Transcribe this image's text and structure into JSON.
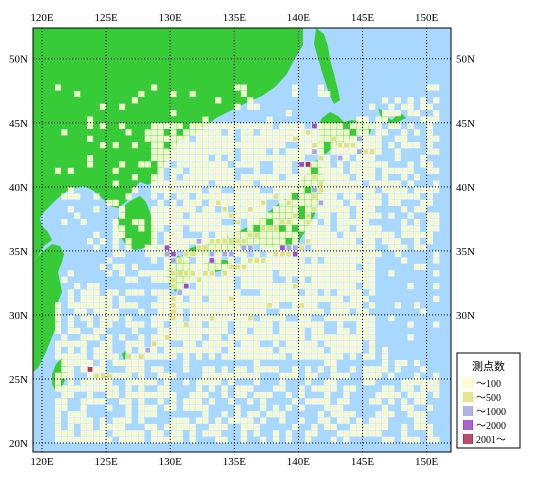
{
  "map": {
    "lon_min": 119.3,
    "lon_max": 151.9,
    "lat_min": 19.3,
    "lat_max": 52.4,
    "grid_lons": [
      120,
      125,
      130,
      135,
      140,
      145,
      150
    ],
    "grid_lats": [
      20,
      25,
      30,
      35,
      40,
      45,
      50
    ],
    "lon_labels": [
      "120E",
      "125E",
      "130E",
      "135E",
      "140E",
      "145E",
      "150E"
    ],
    "lat_labels": [
      "20N",
      "25N",
      "30N",
      "35N",
      "40N",
      "45N",
      "50N"
    ],
    "colors": {
      "ocean": "#a8d8ff",
      "land": "#37cc37",
      "grid": "#000000",
      "frame": "#000000"
    }
  },
  "legend": {
    "title": "測点数",
    "items": [
      {
        "label": "～100",
        "color": "#fbfbc4"
      },
      {
        "label": "～500",
        "color": "#e2e27a"
      },
      {
        "label": "～1000",
        "color": "#a6a6e0"
      },
      {
        "label": "～2000",
        "color": "#9b4bc6"
      },
      {
        "label": "2001～",
        "color": "#b0324f"
      }
    ]
  },
  "chart_data": {
    "type": "heatmap",
    "cell_size_deg": 0.5,
    "categories": [
      "～100",
      "～500",
      "～1000",
      "～2000",
      "2001～"
    ],
    "cells_by_category": {
      "～500": [
        [
          139.5,
          43.5
        ],
        [
          140.5,
          44.0
        ],
        [
          141.0,
          43.0
        ],
        [
          142.5,
          43.5
        ],
        [
          143.0,
          43.0
        ],
        [
          143.5,
          43.0
        ],
        [
          144.0,
          43.0
        ],
        [
          144.5,
          42.5
        ],
        [
          145.0,
          42.5
        ],
        [
          145.5,
          42.5
        ],
        [
          140.0,
          41.5
        ],
        [
          141.5,
          42.0
        ],
        [
          141.0,
          40.5
        ],
        [
          141.5,
          40.0
        ],
        [
          141.5,
          39.5
        ],
        [
          141.0,
          39.0
        ],
        [
          141.5,
          38.5
        ],
        [
          141.0,
          38.0
        ],
        [
          140.5,
          37.5
        ],
        [
          140.5,
          37.0
        ],
        [
          139.5,
          37.5
        ],
        [
          139.0,
          37.0
        ],
        [
          138.5,
          37.0
        ],
        [
          138.0,
          36.5
        ],
        [
          137.5,
          36.5
        ],
        [
          137.0,
          36.5
        ],
        [
          136.5,
          36.0
        ],
        [
          136.0,
          36.0
        ],
        [
          135.5,
          35.5
        ],
        [
          135.0,
          35.5
        ],
        [
          134.5,
          35.5
        ],
        [
          134.0,
          35.5
        ],
        [
          133.5,
          35.5
        ],
        [
          133.0,
          35.5
        ],
        [
          132.5,
          35.0
        ],
        [
          132.0,
          35.0
        ],
        [
          131.5,
          34.5
        ],
        [
          131.0,
          34.5
        ],
        [
          130.5,
          34.0
        ],
        [
          130.5,
          33.0
        ],
        [
          131.0,
          33.0
        ],
        [
          131.5,
          33.0
        ],
        [
          132.0,
          32.5
        ],
        [
          132.5,
          33.0
        ],
        [
          133.0,
          33.0
        ],
        [
          134.0,
          33.0
        ],
        [
          134.5,
          33.5
        ],
        [
          135.0,
          33.5
        ],
        [
          135.5,
          33.5
        ],
        [
          136.0,
          34.0
        ],
        [
          136.5,
          34.0
        ],
        [
          137.0,
          34.0
        ],
        [
          138.0,
          34.5
        ],
        [
          138.5,
          34.5
        ],
        [
          139.0,
          34.5
        ],
        [
          139.5,
          34.5
        ],
        [
          140.0,
          35.0
        ],
        [
          140.5,
          35.5
        ],
        [
          130.0,
          33.0
        ],
        [
          130.0,
          32.5
        ],
        [
          130.0,
          32.0
        ],
        [
          130.0,
          31.0
        ],
        [
          130.0,
          30.5
        ],
        [
          130.0,
          30.0
        ],
        [
          130.0,
          29.5
        ],
        [
          129.5,
          28.0
        ],
        [
          128.5,
          27.5
        ],
        [
          128.0,
          27.0
        ],
        [
          127.5,
          26.5
        ],
        [
          124.0,
          25.0
        ],
        [
          124.5,
          25.0
        ],
        [
          125.0,
          25.0
        ],
        [
          133.5,
          38.5
        ],
        [
          134.0,
          38.0
        ],
        [
          134.5,
          37.5
        ],
        [
          135.0,
          37.0
        ],
        [
          136.0,
          38.0
        ],
        [
          137.0,
          38.5
        ],
        [
          138.0,
          39.0
        ],
        [
          139.0,
          38.5
        ],
        [
          137.5,
          30.5
        ],
        [
          136.0,
          29.5
        ],
        [
          134.5,
          31.0
        ],
        [
          133.0,
          29.5
        ],
        [
          131.0,
          29.0
        ],
        [
          126.5,
          26.5
        ],
        [
          140.0,
          30.5
        ],
        [
          139.5,
          32.0
        ]
      ],
      "～1000": [
        [
          141.0,
          44.5
        ],
        [
          144.5,
          43.5
        ],
        [
          144.5,
          42.5
        ],
        [
          143.0,
          42.0
        ],
        [
          132.0,
          35.5
        ],
        [
          129.5,
          34.5
        ],
        [
          130.0,
          34.0
        ],
        [
          131.0,
          32.0
        ],
        [
          130.5,
          31.5
        ],
        [
          133.0,
          34.5
        ],
        [
          134.5,
          34.5
        ],
        [
          135.5,
          35.0
        ],
        [
          139.5,
          35.0
        ],
        [
          139.0,
          35.0
        ],
        [
          136.0,
          35.0
        ],
        [
          134.0,
          34.5
        ],
        [
          128.0,
          27.0
        ],
        [
          141.0,
          39.5
        ],
        [
          141.5,
          38.5
        ],
        [
          141.0,
          42.5
        ]
      ],
      "～2000": [
        [
          141.0,
          44.5
        ],
        [
          140.0,
          41.5
        ],
        [
          140.5,
          41.5
        ],
        [
          129.5,
          35.0
        ],
        [
          130.0,
          34.5
        ],
        [
          131.0,
          32.0
        ],
        [
          133.0,
          34.0
        ],
        [
          138.5,
          35.0
        ],
        [
          139.5,
          34.5
        ]
      ],
      "2001～": [
        [
          123.5,
          25.5
        ],
        [
          140.5,
          41.5
        ]
      ]
    }
  }
}
